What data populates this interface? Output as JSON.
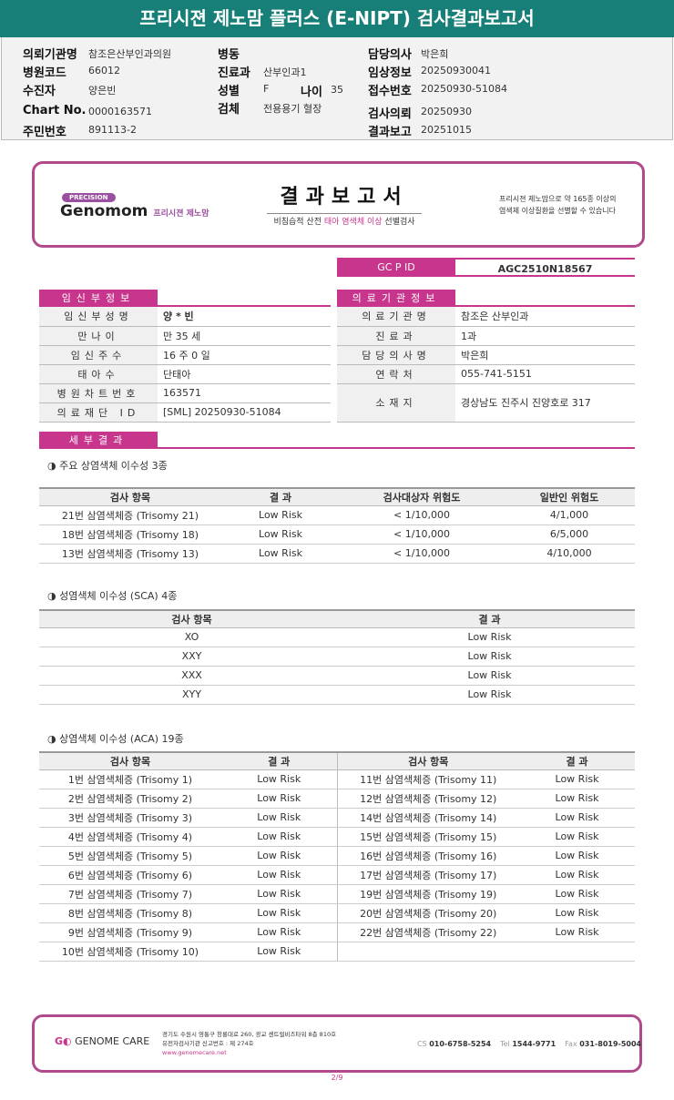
{
  "title": "프리시젼 제노맘 플러스 (E-NIPT) 검사결과보고서",
  "info": {
    "col1": [
      {
        "label": "의뢰기관명",
        "value": "참조은산부인과의원"
      },
      {
        "label": "병원코드",
        "value": "66012"
      },
      {
        "label": "수진자",
        "value": "양은빈"
      },
      {
        "label": "Chart No.",
        "value": "0000163571"
      },
      {
        "label": "주민번호",
        "value": "891113-2"
      }
    ],
    "col2": [
      {
        "label": "병동",
        "value": ""
      },
      {
        "label": "진료과",
        "value": "산부인과1"
      },
      {
        "label": "성별",
        "value": "F"
      },
      {
        "label": "검체",
        "value": "전용용기 혈장"
      }
    ],
    "age_label": "나이",
    "age_value": "35",
    "col3": [
      {
        "label": "담당의사",
        "value": "박은희"
      },
      {
        "label": "임상정보",
        "value": "20250930041"
      },
      {
        "label": "접수번호",
        "value": "20250930-51084"
      },
      {
        "label": "검사의뢰",
        "value": "20250930"
      },
      {
        "label": "결과보고",
        "value": "20251015"
      }
    ]
  },
  "banner": {
    "precision": "PRECISION",
    "logo": "Genomom",
    "logo_sub": "프리시젼 제노맘",
    "title": "결과보고서",
    "subtitle_pre": "비침습적 산전 ",
    "subtitle_em": "태아 염색체 이상",
    "subtitle_post": " 선별검사",
    "right1": "프리시젼 제노맘으로 약 165종 이상의",
    "right2": "염색체 이상질환을 선별할 수 있습니다"
  },
  "gcpid": {
    "label": "GC P ID",
    "value": "AGC2510N18567"
  },
  "patient": {
    "header": "임신부정보",
    "rows": [
      [
        "임신부성명",
        "양 * 빈"
      ],
      [
        "만나이",
        "만 35 세"
      ],
      [
        "임신주수",
        "16 주 0 일"
      ],
      [
        "태아수",
        "단태아"
      ],
      [
        "병원차트번호",
        "163571"
      ],
      [
        "의료재단 ID",
        "[SML] 20250930-51084"
      ]
    ]
  },
  "hospital": {
    "header": "의료기관정보",
    "rows": [
      [
        "의료기관명",
        "참조은 산부인과"
      ],
      [
        "진료과",
        "1과"
      ],
      [
        "담당의사명",
        "박은희"
      ],
      [
        "연락처",
        "055-741-5151"
      ],
      [
        "소재지",
        "경상남도 진주시 진양호로 317"
      ]
    ]
  },
  "detail_header": "세부결과",
  "sec1": {
    "title": "◑ 주요 상염색체 이수성 3종",
    "headers": [
      "검사 항목",
      "결 과",
      "검사대상자 위험도",
      "일반인 위험도"
    ],
    "rows": [
      [
        "21번 삼염색체증 (Trisomy 21)",
        "Low Risk",
        "< 1/10,000",
        "4/1,000"
      ],
      [
        "18번 삼염색체증 (Trisomy 18)",
        "Low Risk",
        "< 1/10,000",
        "6/5,000"
      ],
      [
        "13번 삼염색체증 (Trisomy 13)",
        "Low Risk",
        "< 1/10,000",
        "4/10,000"
      ]
    ]
  },
  "sec2": {
    "title": "◑ 성염색체 이수성 (SCA) 4종",
    "headers": [
      "검사 항목",
      "결 과"
    ],
    "rows": [
      [
        "XO",
        "Low Risk"
      ],
      [
        "XXY",
        "Low Risk"
      ],
      [
        "XXX",
        "Low Risk"
      ],
      [
        "XYY",
        "Low Risk"
      ]
    ]
  },
  "sec3": {
    "title": "◑ 상염색체 이수성 (ACA) 19종",
    "headers": [
      "검사 항목",
      "결 과",
      "검사 항목",
      "결 과"
    ],
    "rows": [
      [
        "1번 삼염색체증 (Trisomy 1)",
        "Low Risk",
        "11번 삼염색체증 (Trisomy 11)",
        "Low Risk"
      ],
      [
        "2번 삼염색체증 (Trisomy 2)",
        "Low Risk",
        "12번 삼염색체증 (Trisomy 12)",
        "Low Risk"
      ],
      [
        "3번 삼염색체증 (Trisomy 3)",
        "Low Risk",
        "14번 삼염색체증 (Trisomy 14)",
        "Low Risk"
      ],
      [
        "4번 삼염색체증 (Trisomy 4)",
        "Low Risk",
        "15번 삼염색체증 (Trisomy 15)",
        "Low Risk"
      ],
      [
        "5번 삼염색체증 (Trisomy 5)",
        "Low Risk",
        "16번 삼염색체증 (Trisomy 16)",
        "Low Risk"
      ],
      [
        "6번 삼염색체증 (Trisomy 6)",
        "Low Risk",
        "17번 삼염색체증 (Trisomy 17)",
        "Low Risk"
      ],
      [
        "7번 삼염색체증 (Trisomy 7)",
        "Low Risk",
        "19번 삼염색체증 (Trisomy 19)",
        "Low Risk"
      ],
      [
        "8번 삼염색체증 (Trisomy 8)",
        "Low Risk",
        "20번 삼염색체증 (Trisomy 20)",
        "Low Risk"
      ],
      [
        "9번 삼염색체증 (Trisomy 9)",
        "Low Risk",
        "22번 삼염색체증 (Trisomy 22)",
        "Low Risk"
      ],
      [
        "10번 삼염색체증 (Trisomy 10)",
        "Low Risk",
        "",
        ""
      ]
    ]
  },
  "footer": {
    "logo": "GENOME CARE",
    "addr1": "경기도 수원시 영통구 창룡대로 260, 광교 센트럴비즈타워 8층 810호",
    "addr2": "유전자검사기관 신고번호 : 제 274호",
    "url": "www.genomecare.net",
    "cs_label": "CS",
    "cs": "010-6758-5254",
    "tel_label": "Tel",
    "tel": "1544-9771",
    "fax_label": "Fax",
    "fax": "031-8019-5004"
  },
  "page": "2/9",
  "colors": {
    "teal": "#177f78",
    "magenta": "#c8358c",
    "frame": "#b04a8c"
  }
}
